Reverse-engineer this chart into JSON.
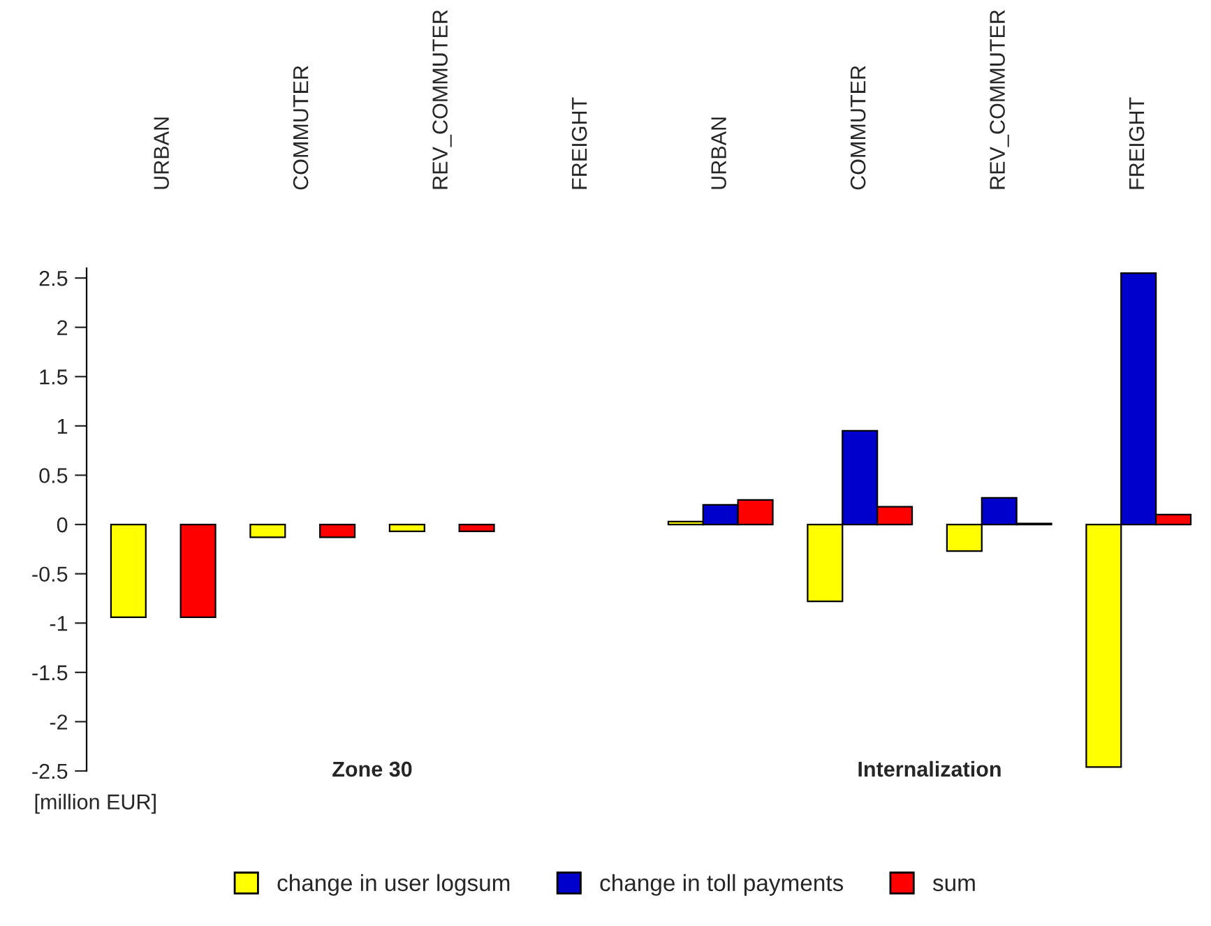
{
  "chart_data": {
    "type": "bar",
    "ylabel": "[million EUR]",
    "categories": [
      "URBAN",
      "COMMUTER",
      "REV_COMMUTER",
      "FREIGHT",
      "URBAN",
      "COMMUTER",
      "REV_COMMUTER",
      "FREIGHT"
    ],
    "series": [
      {
        "name": "change in user logsum",
        "color": "#ffff00",
        "values": [
          -0.94,
          -0.13,
          -0.07,
          null,
          0.03,
          -0.78,
          -0.27,
          -2.46
        ]
      },
      {
        "name": "change in toll payments",
        "color": "#0000cd",
        "values": [
          null,
          null,
          null,
          null,
          0.2,
          0.95,
          0.27,
          2.55
        ]
      },
      {
        "name": "sum",
        "color": "#ff0000",
        "values": [
          -0.94,
          -0.13,
          -0.07,
          null,
          0.25,
          0.18,
          0.01,
          0.1
        ]
      }
    ],
    "annotations": [
      "Zone 30",
      "Internalization"
    ],
    "ylim": [
      -2.5,
      2.6
    ],
    "yticks": [
      -2.5,
      -2,
      -1.5,
      -1,
      -0.5,
      0,
      0.5,
      1,
      1.5,
      2,
      2.5
    ],
    "grid": false,
    "legend": "bottom"
  }
}
